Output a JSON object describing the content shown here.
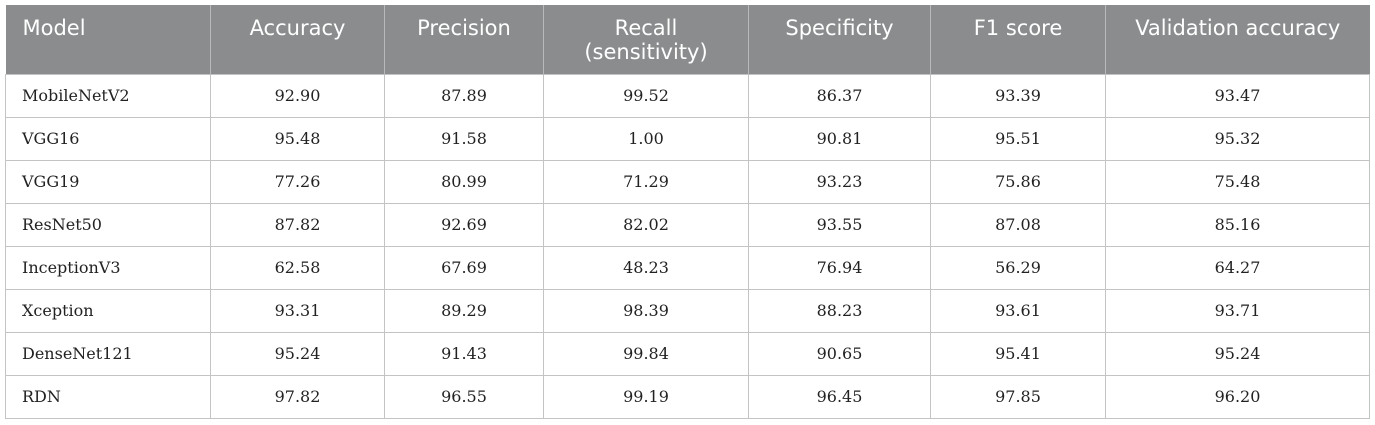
{
  "table": {
    "headers": [
      {
        "line1": "Model",
        "line2": ""
      },
      {
        "line1": "Accuracy",
        "line2": ""
      },
      {
        "line1": "Precision",
        "line2": ""
      },
      {
        "line1": "Recall",
        "line2": "(sensitivity)"
      },
      {
        "line1": "Specificity",
        "line2": ""
      },
      {
        "line1": "F1 score",
        "line2": ""
      },
      {
        "line1": "Validation accuracy",
        "line2": ""
      }
    ],
    "rows": [
      [
        "MobileNetV2",
        "92.90",
        "87.89",
        "99.52",
        "86.37",
        "93.39",
        "93.47"
      ],
      [
        "VGG16",
        "95.48",
        "91.58",
        "1.00",
        "90.81",
        "95.51",
        "95.32"
      ],
      [
        "VGG19",
        "77.26",
        "80.99",
        "71.29",
        "93.23",
        "75.86",
        "75.48"
      ],
      [
        "ResNet50",
        "87.82",
        "92.69",
        "82.02",
        "93.55",
        "87.08",
        "85.16"
      ],
      [
        "InceptionV3",
        "62.58",
        "67.69",
        "48.23",
        "76.94",
        "56.29",
        "64.27"
      ],
      [
        "Xception",
        "93.31",
        "89.29",
        "98.39",
        "88.23",
        "93.61",
        "93.71"
      ],
      [
        "DenseNet121",
        "95.24",
        "91.43",
        "99.84",
        "90.65",
        "95.41",
        "95.24"
      ],
      [
        "RDN",
        "97.82",
        "96.55",
        "99.19",
        "96.45",
        "97.85",
        "96.20"
      ]
    ]
  },
  "colors": {
    "header_background": "#8a8c8e",
    "header_text": "#ffffff",
    "grid_line": "#c4c4c4"
  }
}
